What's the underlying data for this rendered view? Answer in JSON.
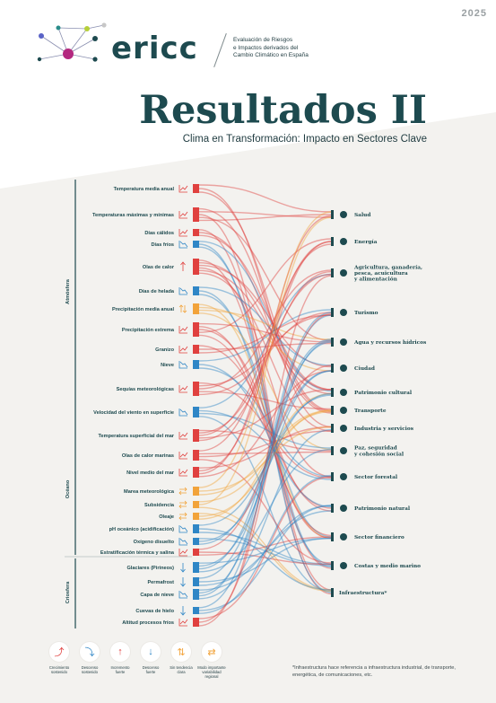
{
  "year": "2025",
  "brand": "ericc",
  "tagline": [
    "Evaluación de Riesgos",
    "e Impactos derivados del",
    "Cambio Climático en España"
  ],
  "title": "Resultados II",
  "subtitle": "Clima en Transformación: Impacto en Sectores Clave",
  "groups": [
    "Atmósfera",
    "Océano",
    "Criosfera"
  ],
  "drivers": [
    {
      "label": "Temperatura media anual",
      "trend": "up"
    },
    {
      "label": "Temperaturas máximas y mínimas",
      "trend": "up"
    },
    {
      "label": "Días cálidos",
      "trend": "up"
    },
    {
      "label": "Días fríos",
      "trend": "down"
    },
    {
      "label": "Olas de calor",
      "trend": "strong-up"
    },
    {
      "label": "Días de helada",
      "trend": "down"
    },
    {
      "label": "Precipitación media anual",
      "trend": "no-trend"
    },
    {
      "label": "Precipitación extrema",
      "trend": "up"
    },
    {
      "label": "Granizo",
      "trend": "up"
    },
    {
      "label": "Nieve",
      "trend": "down"
    },
    {
      "label": "Sequías meteorológicas",
      "trend": "up"
    },
    {
      "label": "Velocidad del viento en superficie",
      "trend": "down"
    },
    {
      "label": "Temperatura superficial del mar",
      "trend": "up"
    },
    {
      "label": "Olas de calor marinas",
      "trend": "up"
    },
    {
      "label": "Nivel medio del mar",
      "trend": "up"
    },
    {
      "label": "Marea meteorológica",
      "trend": "variable"
    },
    {
      "label": "Subsidencia",
      "trend": "variable"
    },
    {
      "label": "Oleaje",
      "trend": "variable"
    },
    {
      "label": "pH oceánico (acidificación)",
      "trend": "down"
    },
    {
      "label": "Oxígeno disuelto",
      "trend": "down"
    },
    {
      "label": "Estratificación térmica y salina",
      "trend": "up"
    },
    {
      "label": "Glaciares (Pirineos)",
      "trend": "strong-down"
    },
    {
      "label": "Permafrost",
      "trend": "strong-down"
    },
    {
      "label": "Capa de nieve",
      "trend": "down"
    },
    {
      "label": "Cuevas de hielo",
      "trend": "strong-down"
    },
    {
      "label": "Altitud procesos fríos",
      "trend": "up"
    }
  ],
  "sectors": [
    {
      "label": "Salud",
      "icon": "heart-icon"
    },
    {
      "label": "Energía",
      "icon": "battery-icon"
    },
    {
      "label": "Agricultura, ganadería,\npesca, acuicultura\ny alimentación",
      "icon": "tractor-icon"
    },
    {
      "label": "Turismo",
      "icon": "suitcase-icon"
    },
    {
      "label": "Agua y recursos hídricos",
      "icon": "water-drop-icon"
    },
    {
      "label": "Ciudad",
      "icon": "buildings-icon"
    },
    {
      "label": "Patrimonio cultural",
      "icon": "monument-icon"
    },
    {
      "label": "Transporte",
      "icon": "truck-icon"
    },
    {
      "label": "Industria y servicios",
      "icon": "factory-icon"
    },
    {
      "label": "Paz, seguridad\ny cohesión social",
      "icon": "people-icon"
    },
    {
      "label": "Sector forestal",
      "icon": "tree-icon"
    },
    {
      "label": "Patrimonio natural",
      "icon": "landscape-icon"
    },
    {
      "label": "Sector financiero",
      "icon": "bank-icon"
    },
    {
      "label": "Costas y medio marino",
      "icon": "coast-icon"
    },
    {
      "label": "Infraestructura*",
      "icon": ""
    }
  ],
  "legend": [
    {
      "label": "Crecimiento\nsostenido",
      "trend": "up",
      "color": "#e0413f"
    },
    {
      "label": "Descenso\nsostenido",
      "trend": "down",
      "color": "#2f86c6"
    },
    {
      "label": "Incremento\nfuerte",
      "trend": "strong-up",
      "color": "#e0413f"
    },
    {
      "label": "Descenso\nfuerte",
      "trend": "strong-down",
      "color": "#2f86c6"
    },
    {
      "label": "Sin tendencia\nclara",
      "trend": "no-trend",
      "color": "#f2a33a"
    },
    {
      "label": "Modo importante\nvariabilidad\nregional",
      "trend": "variable",
      "color": "#f2a33a"
    }
  ],
  "footnote": "*Infraestructura hace referencia a infraestructura industrial, de transporte, energética, de comunicaciones, etc.",
  "colors": {
    "up": "#e0413f",
    "down": "#2f86c6",
    "variable": "#f2a33a",
    "dark": "#1d4a4f"
  }
}
